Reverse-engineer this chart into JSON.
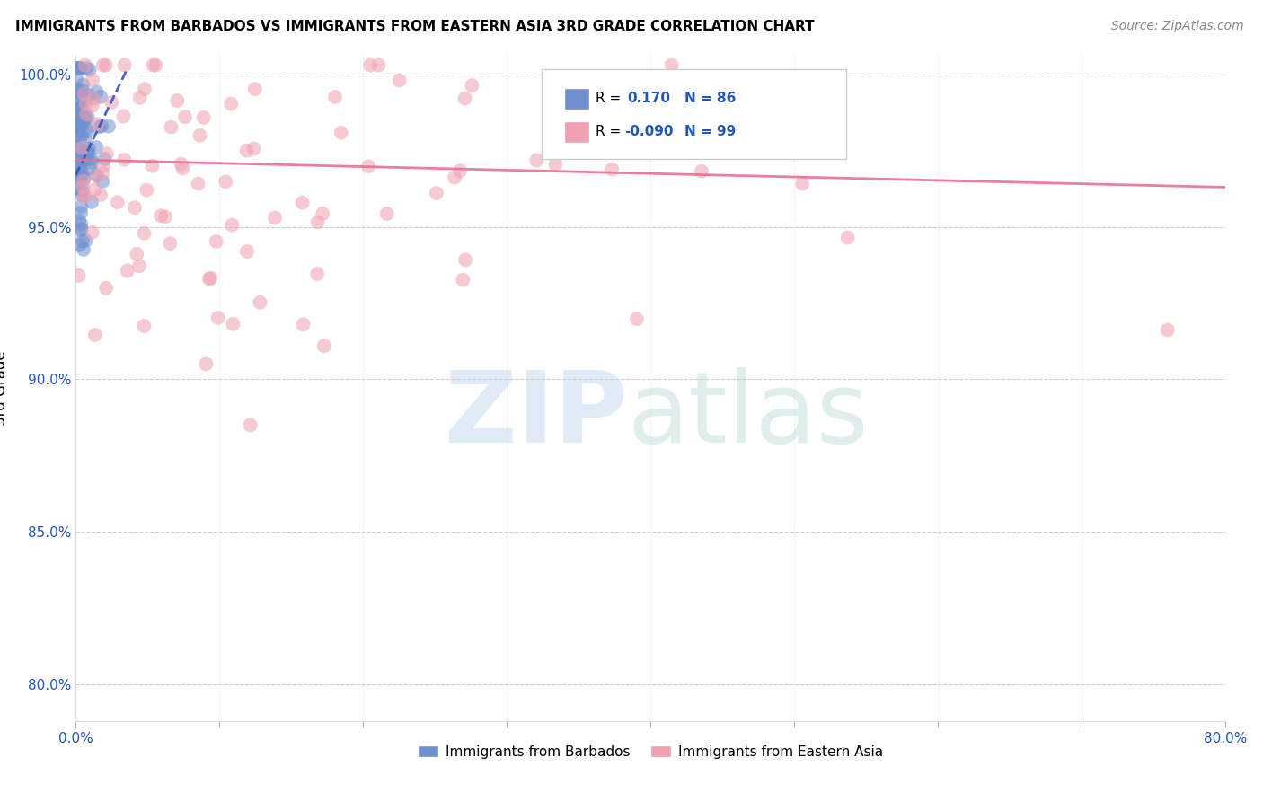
{
  "title": "IMMIGRANTS FROM BARBADOS VS IMMIGRANTS FROM EASTERN ASIA 3RD GRADE CORRELATION CHART",
  "source": "Source: ZipAtlas.com",
  "ylabel": "3rd Grade",
  "xlim": [
    0.0,
    0.8
  ],
  "ylim": [
    0.788,
    1.006
  ],
  "xticks": [
    0.0,
    0.1,
    0.2,
    0.3,
    0.4,
    0.5,
    0.6,
    0.7,
    0.8
  ],
  "xticklabels": [
    "0.0%",
    "",
    "",
    "",
    "",
    "",
    "",
    "",
    "80.0%"
  ],
  "yticks": [
    0.8,
    0.85,
    0.9,
    0.95,
    1.0
  ],
  "yticklabels": [
    "80.0%",
    "85.0%",
    "90.0%",
    "95.0%",
    "100.0%"
  ],
  "blue_color": "#7090D0",
  "pink_color": "#F0A0B0",
  "blue_line_color": "#3355BB",
  "pink_line_color": "#E87090",
  "blue_r": 0.17,
  "pink_r": -0.09,
  "n_blue": 86,
  "n_pink": 99,
  "pink_line_x0": 0.0,
  "pink_line_y0": 0.972,
  "pink_line_x1": 0.8,
  "pink_line_y1": 0.963,
  "blue_line_x0": 0.0,
  "blue_line_y0": 0.967,
  "blue_line_x1": 0.035,
  "blue_line_y1": 1.001
}
